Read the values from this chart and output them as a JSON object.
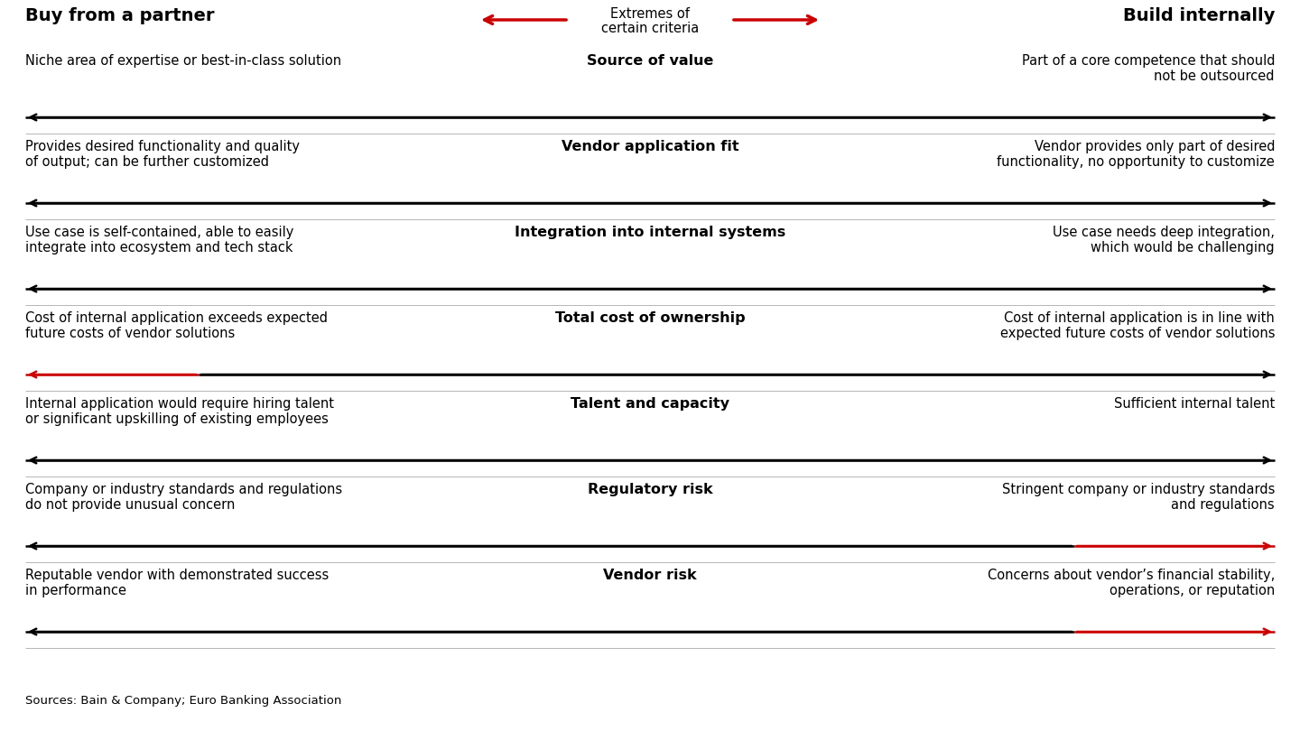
{
  "title_left": "Buy from a partner",
  "title_right": "Build internally",
  "extremes_label_line1": "Extremes of",
  "extremes_label_line2": "certain criteria",
  "source_text": "Sources: Bain & Company; Euro Banking Association",
  "rows": [
    {
      "criterion": "Source of value",
      "left_text": "Niche area of expertise or best-in-class solution",
      "right_text": "Part of a core competence that should\nnot be outsourced",
      "red_side": null
    },
    {
      "criterion": "Vendor application fit",
      "left_text": "Provides desired functionality and quality\nof output; can be further customized",
      "right_text": "Vendor provides only part of desired\nfunctionality, no opportunity to customize",
      "red_side": null
    },
    {
      "criterion": "Integration into internal systems",
      "left_text": "Use case is self-contained, able to easily\nintegrate into ecosystem and tech stack",
      "right_text": "Use case needs deep integration,\nwhich would be challenging",
      "red_side": null
    },
    {
      "criterion": "Total cost of ownership",
      "left_text": "Cost of internal application exceeds expected\nfuture costs of vendor solutions",
      "right_text": "Cost of internal application is in line with\nexpected future costs of vendor solutions",
      "red_side": "left"
    },
    {
      "criterion": "Talent and capacity",
      "left_text": "Internal application would require hiring talent\nor significant upskilling of existing employees",
      "right_text": "Sufficient internal talent",
      "red_side": null
    },
    {
      "criterion": "Regulatory risk",
      "left_text": "Company or industry standards and regulations\ndo not provide unusual concern",
      "right_text": "Stringent company or industry standards\nand regulations",
      "red_side": "right"
    },
    {
      "criterion": "Vendor risk",
      "left_text": "Reputable vendor with demonstrated success\nin performance",
      "right_text": "Concerns about vendor’s financial stability,\noperations, or reputation",
      "red_side": "right"
    }
  ],
  "bg_color": "#ffffff",
  "text_color": "#000000",
  "arrow_black": "#000000",
  "arrow_red": "#cc0000",
  "font_size_title": 14,
  "font_size_criterion": 11.5,
  "font_size_body": 10.5,
  "font_size_source": 9.5
}
